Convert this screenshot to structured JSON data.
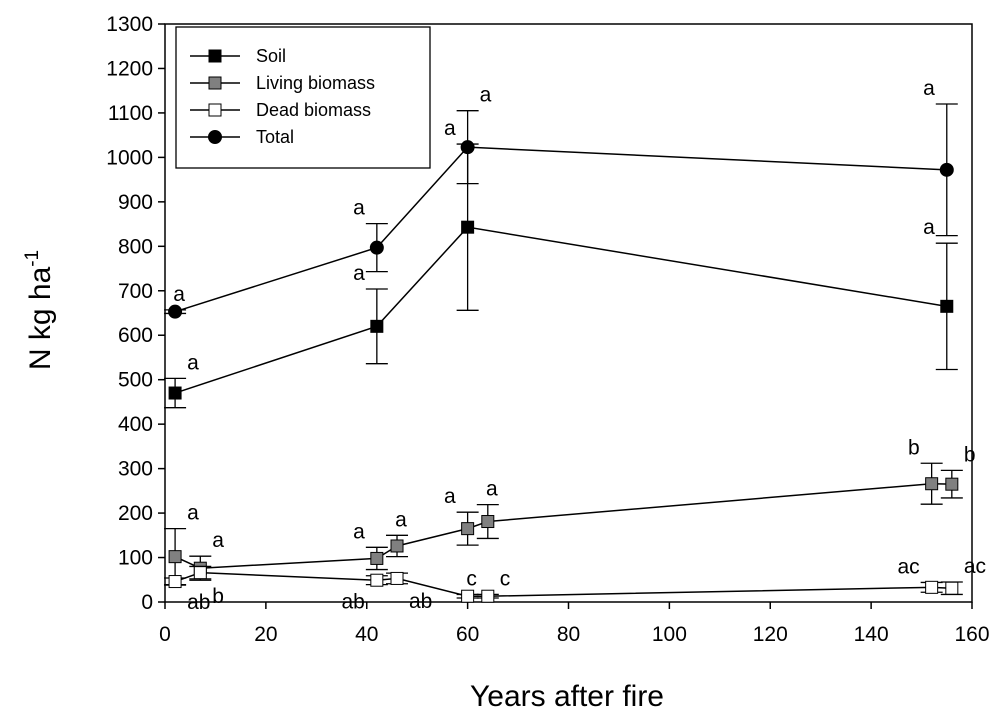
{
  "chart_data": {
    "type": "line",
    "xlabel": "Years after fire",
    "ylabel": "N kg ha",
    "ylabel_superscript": "-1",
    "xlim": [
      0,
      160
    ],
    "ylim": [
      0,
      1300
    ],
    "x_ticks": [
      "0",
      "20",
      "40",
      "60",
      "80",
      "100",
      "120",
      "140",
      "160"
    ],
    "y_ticks": [
      "0",
      "100",
      "200",
      "300",
      "400",
      "500",
      "600",
      "700",
      "800",
      "900",
      "1000",
      "1100",
      "1200",
      "1300"
    ],
    "grid": false,
    "legend_position": "top-left",
    "series": [
      {
        "name": "Soil",
        "marker": "square",
        "fill": "#000000",
        "points": [
          {
            "x": 2,
            "y": 470,
            "err": 33,
            "label": "a",
            "label_pos": "above-right"
          },
          {
            "x": 42,
            "y": 620,
            "err": 84,
            "label": "a",
            "label_pos": "above-left"
          },
          {
            "x": 60,
            "y": 843,
            "err": 187,
            "label": "a",
            "label_pos": "above-left"
          },
          {
            "x": 155,
            "y": 665,
            "err": 142,
            "label": "a",
            "label_pos": "above-left"
          }
        ]
      },
      {
        "name": "Living biomass",
        "marker": "square",
        "fill": "#808080",
        "points": [
          {
            "x": 2,
            "y": 102,
            "err": 63,
            "label": "a",
            "label_pos": "above-right"
          },
          {
            "x": 7,
            "y": 76,
            "err": 27,
            "label": "a",
            "label_pos": "above-right"
          },
          {
            "x": 42,
            "y": 98,
            "err": 25,
            "label": "a",
            "label_pos": "above-left"
          },
          {
            "x": 46,
            "y": 126,
            "err": 24,
            "label": "a",
            "label_pos": "above"
          },
          {
            "x": 60,
            "y": 165,
            "err": 37,
            "label": "a",
            "label_pos": "above-left"
          },
          {
            "x": 64,
            "y": 181,
            "err": 38,
            "label": "a",
            "label_pos": "above"
          },
          {
            "x": 152,
            "y": 266,
            "err": 46,
            "label": "b",
            "label_pos": "above-left"
          },
          {
            "x": 156,
            "y": 265,
            "err": 31,
            "label": "b",
            "label_pos": "above-right"
          }
        ]
      },
      {
        "name": "Dead biomass",
        "marker": "square",
        "fill": "#ffffff",
        "points": [
          {
            "x": 2,
            "y": 46,
            "err": 8,
            "label": "ab",
            "label_pos": "below-right"
          },
          {
            "x": 7,
            "y": 66,
            "err": 14,
            "label": "b",
            "label_pos": "below-right"
          },
          {
            "x": 42,
            "y": 49,
            "err": 10,
            "label": "ab",
            "label_pos": "below-left"
          },
          {
            "x": 46,
            "y": 53,
            "err": 12,
            "label": "ab",
            "label_pos": "below-right"
          },
          {
            "x": 60,
            "y": 13,
            "err": 4,
            "label": "c",
            "label_pos": "above"
          },
          {
            "x": 64,
            "y": 13,
            "err": 4,
            "label": "c",
            "label_pos": "above-right"
          },
          {
            "x": 152,
            "y": 33,
            "err": 11,
            "label": "ac",
            "label_pos": "above-left"
          },
          {
            "x": 156,
            "y": 31,
            "err": 14,
            "label": "ac",
            "label_pos": "above-right"
          }
        ]
      },
      {
        "name": "Total",
        "marker": "circle",
        "fill": "#000000",
        "points": [
          {
            "x": 2,
            "y": 653,
            "err": 4,
            "label": "a",
            "label_pos": "above"
          },
          {
            "x": 42,
            "y": 797,
            "err": 54,
            "label": "a",
            "label_pos": "above-left"
          },
          {
            "x": 60,
            "y": 1023,
            "err": 82,
            "label": "a",
            "label_pos": "above-right"
          },
          {
            "x": 155,
            "y": 972,
            "err": 148,
            "label": "a",
            "label_pos": "above-left"
          }
        ]
      }
    ]
  }
}
